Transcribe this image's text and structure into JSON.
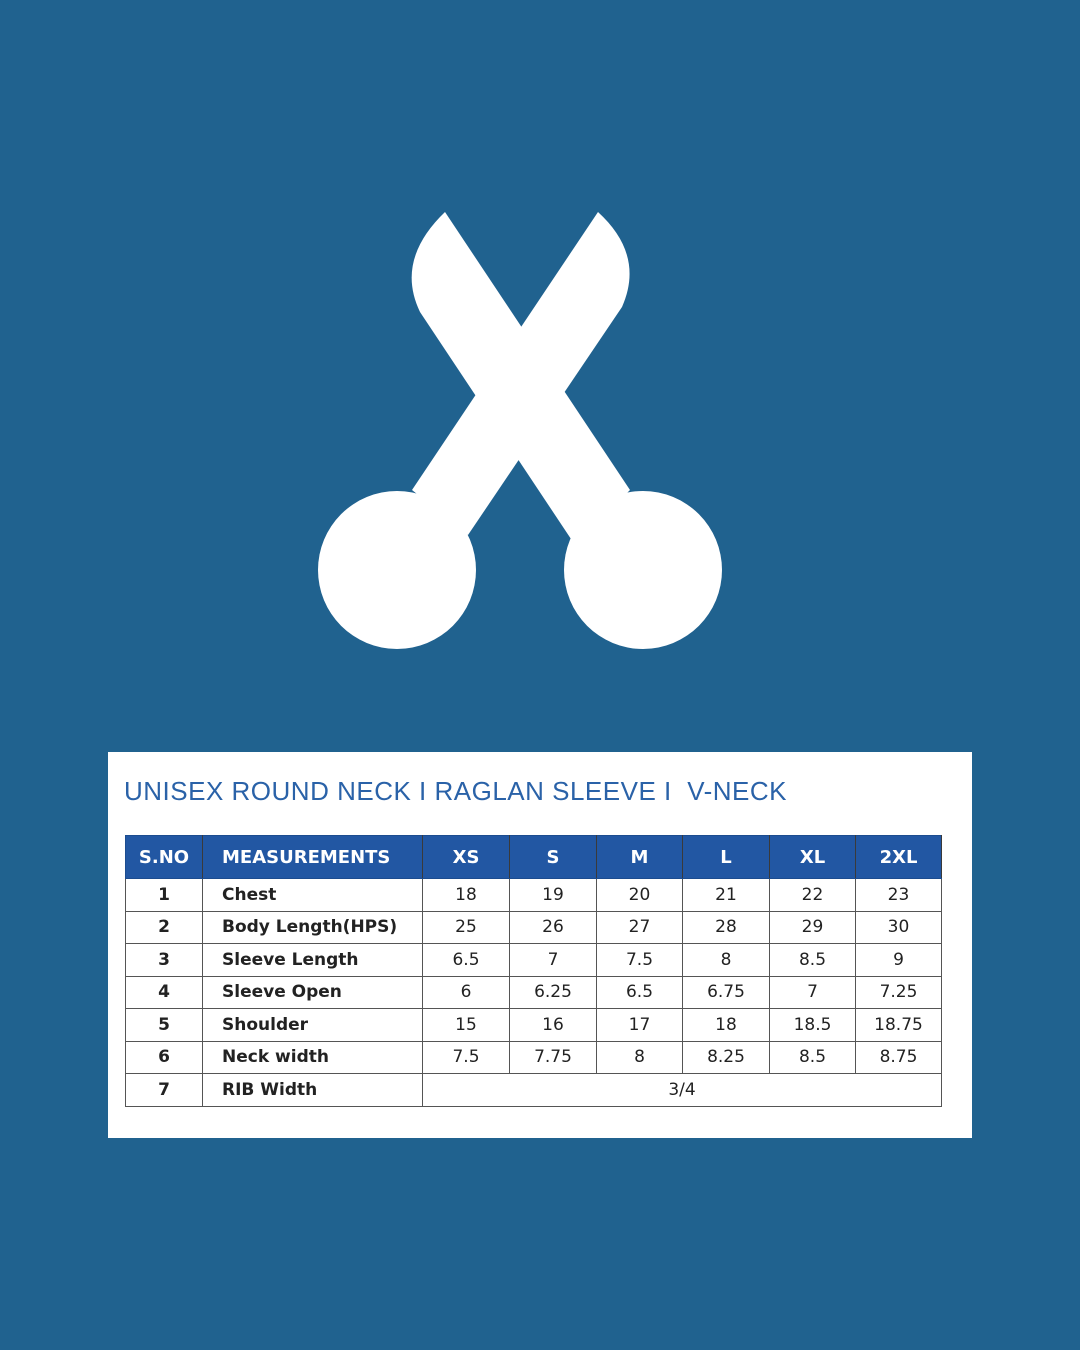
{
  "icon": "scissors-icon",
  "colors": {
    "background": "#20628f",
    "header": "#2257a3",
    "title": "#2a62a8"
  },
  "title": "UNISEX ROUND NECK I RAGLAN SLEEVE I  V-NECK",
  "table": {
    "headers": [
      "S.NO",
      "MEASUREMENTS",
      "XS",
      "S",
      "M",
      "L",
      "XL",
      "2XL"
    ],
    "rows": [
      {
        "sno": "1",
        "name": "Chest",
        "values": [
          "18",
          "19",
          "20",
          "21",
          "22",
          "23"
        ]
      },
      {
        "sno": "2",
        "name": "Body Length(HPS)",
        "values": [
          "25",
          "26",
          "27",
          "28",
          "29",
          "30"
        ]
      },
      {
        "sno": "3",
        "name": "Sleeve Length",
        "values": [
          "6.5",
          "7",
          "7.5",
          "8",
          "8.5",
          "9"
        ]
      },
      {
        "sno": "4",
        "name": "Sleeve Open",
        "values": [
          "6",
          "6.25",
          "6.5",
          "6.75",
          "7",
          "7.25"
        ]
      },
      {
        "sno": "5",
        "name": "Shoulder",
        "values": [
          "15",
          "16",
          "17",
          "18",
          "18.5",
          "18.75"
        ]
      },
      {
        "sno": "6",
        "name": "Neck width",
        "values": [
          "7.5",
          "7.75",
          "8",
          "8.25",
          "8.5",
          "8.75"
        ]
      },
      {
        "sno": "7",
        "name": "RIB Width",
        "span_value": "3/4"
      }
    ]
  }
}
